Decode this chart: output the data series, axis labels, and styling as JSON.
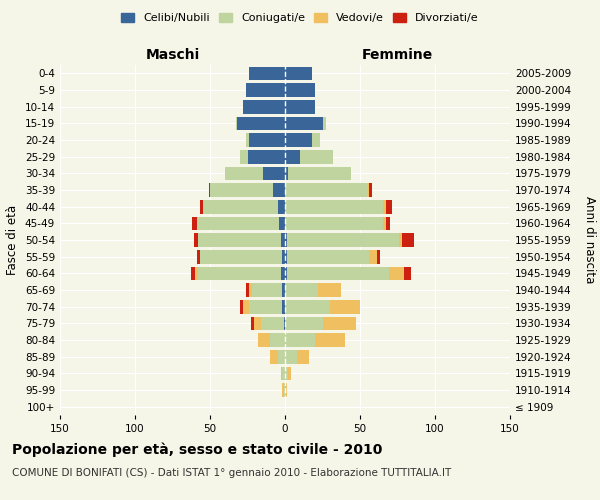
{
  "age_groups": [
    "100+",
    "95-99",
    "90-94",
    "85-89",
    "80-84",
    "75-79",
    "70-74",
    "65-69",
    "60-64",
    "55-59",
    "50-54",
    "45-49",
    "40-44",
    "35-39",
    "30-34",
    "25-29",
    "20-24",
    "15-19",
    "10-14",
    "5-9",
    "0-4"
  ],
  "birth_years": [
    "≤ 1909",
    "1910-1914",
    "1915-1919",
    "1920-1924",
    "1925-1929",
    "1930-1934",
    "1935-1939",
    "1940-1944",
    "1945-1949",
    "1950-1954",
    "1955-1959",
    "1960-1964",
    "1965-1969",
    "1970-1974",
    "1975-1979",
    "1980-1984",
    "1985-1989",
    "1990-1994",
    "1995-1999",
    "2000-2004",
    "2005-2009"
  ],
  "colors": {
    "celibe": "#3a6598",
    "coniugato": "#c0d4a0",
    "vedovo": "#f0c060",
    "divorziato": "#cc2010"
  },
  "maschi": {
    "celibe": [
      0,
      0,
      0,
      0,
      0,
      1,
      2,
      2,
      3,
      2,
      3,
      4,
      5,
      8,
      15,
      25,
      24,
      32,
      28,
      26,
      24
    ],
    "coniugato": [
      0,
      1,
      2,
      5,
      10,
      15,
      22,
      20,
      55,
      55,
      55,
      55,
      50,
      42,
      25,
      5,
      2,
      1,
      0,
      0,
      0
    ],
    "vedovo": [
      0,
      1,
      1,
      5,
      8,
      5,
      4,
      2,
      2,
      0,
      0,
      0,
      0,
      0,
      0,
      0,
      0,
      0,
      0,
      0,
      0
    ],
    "divorziato": [
      0,
      0,
      0,
      0,
      0,
      2,
      2,
      2,
      3,
      2,
      3,
      3,
      2,
      1,
      0,
      0,
      0,
      0,
      0,
      0,
      0
    ]
  },
  "femmine": {
    "nubile": [
      0,
      0,
      0,
      0,
      0,
      0,
      0,
      0,
      1,
      1,
      1,
      0,
      0,
      0,
      2,
      10,
      18,
      25,
      20,
      20,
      18
    ],
    "coniugata": [
      0,
      0,
      2,
      8,
      20,
      25,
      30,
      22,
      68,
      55,
      75,
      65,
      65,
      55,
      42,
      22,
      5,
      2,
      0,
      0,
      0
    ],
    "vedova": [
      0,
      1,
      2,
      8,
      20,
      22,
      20,
      15,
      10,
      5,
      2,
      2,
      2,
      1,
      0,
      0,
      0,
      0,
      0,
      0,
      0
    ],
    "divorziata": [
      0,
      0,
      0,
      0,
      0,
      0,
      0,
      0,
      5,
      2,
      8,
      3,
      4,
      2,
      0,
      0,
      0,
      0,
      0,
      0,
      0
    ]
  },
  "xlim": 150,
  "title": "Popolazione per età, sesso e stato civile - 2010",
  "subtitle": "COMUNE DI BONIFATI (CS) - Dati ISTAT 1° gennaio 2010 - Elaborazione TUTTITALIA.IT",
  "ylabel_left": "Fasce di età",
  "ylabel_right": "Anni di nascita",
  "xlabel_maschi": "Maschi",
  "xlabel_femmine": "Femmine",
  "legend_labels": [
    "Celibi/Nubili",
    "Coniugati/e",
    "Vedovi/e",
    "Divorziati/e"
  ],
  "background_color": "#f5f5e8",
  "grid_color": "#ffffff",
  "title_fontsize": 10,
  "subtitle_fontsize": 7.5,
  "tick_fontsize": 7.5,
  "label_fontsize": 8.5
}
